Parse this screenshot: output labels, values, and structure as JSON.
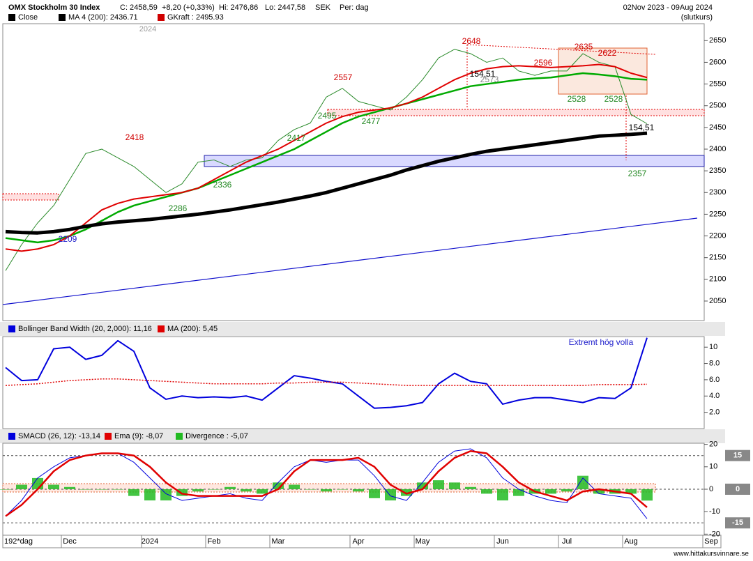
{
  "header": {
    "title": "OMX Stockholm 30 Index",
    "close": "C: 2458,59",
    "change": "+8,20 (+0,33%)",
    "high": "Hi: 2476,86",
    "low": "Lo: 2447,58",
    "currency": "SEK",
    "period": "Per: dag",
    "range": "02Nov 2023 - 09Aug 2024",
    "mode": "(slutkurs)",
    "year_marker": "2024",
    "period_label": "192*dag",
    "watermark": "www.hittakursvinnare.se"
  },
  "chart_data": [
    {
      "type": "line",
      "legend": [
        {
          "name": "Close",
          "color": "#000000"
        },
        {
          "name": "MA 4 (200): 2436.71",
          "color": "#000000"
        },
        {
          "name": "GKraft : 2495.93",
          "color": "#d00000"
        }
      ],
      "ylim": [
        2005,
        2689
      ],
      "yticks": [
        2050,
        2100,
        2150,
        2200,
        2250,
        2300,
        2350,
        2400,
        2450,
        2500,
        2550,
        2600,
        2650
      ],
      "annotations": [
        "2418",
        "2557",
        "2648",
        "2635",
        "2622",
        "2596",
        "2209",
        "2286",
        "2336",
        "2417",
        "2477",
        "2495",
        "2528",
        "2528",
        "2357",
        "154,51",
        "154,51",
        "2573"
      ],
      "series": [
        {
          "color": "#2a8a2a",
          "values": [
            2120,
            2180,
            2230,
            2270,
            2330,
            2390,
            2400,
            2380,
            2360,
            2330,
            2300,
            2320,
            2370,
            2375,
            2360,
            2375,
            2380,
            2420,
            2445,
            2460,
            2520,
            2540,
            2510,
            2500,
            2490,
            2520,
            2560,
            2610,
            2630,
            2620,
            2600,
            2610,
            2580,
            2570,
            2580,
            2580,
            2620,
            2600,
            2590,
            2480,
            2458.59,
            null,
            null,
            null,
            null
          ]
        },
        {
          "color": "#00aa00",
          "values": [
            2195,
            2190,
            2185,
            2190,
            2200,
            2215,
            2235,
            2255,
            2270,
            2280,
            2290,
            2300,
            2310,
            2325,
            2340,
            2355,
            2370,
            2385,
            2400,
            2420,
            2440,
            2460,
            2475,
            2485,
            2495,
            2505,
            2515,
            2525,
            2535,
            2545,
            2550,
            2555,
            2560,
            2563,
            2565,
            2570,
            2575,
            2572,
            2568,
            2562,
            2560,
            null,
            null,
            null,
            null
          ]
        },
        {
          "color": "#e00000",
          "values": [
            2170,
            2165,
            2170,
            2180,
            2200,
            2230,
            2260,
            2275,
            2285,
            2290,
            2295,
            2300,
            2310,
            2330,
            2350,
            2370,
            2385,
            2400,
            2420,
            2440,
            2460,
            2475,
            2485,
            2490,
            2495,
            2505,
            2520,
            2540,
            2560,
            2575,
            2585,
            2590,
            2592,
            2590,
            2588,
            2590,
            2592,
            2595,
            2590,
            2575,
            2565,
            null,
            null,
            null,
            null
          ]
        },
        {
          "color": "#000000",
          "values": [
            2210,
            2208,
            2207,
            2210,
            2215,
            2222,
            2228,
            2232,
            2235,
            2238,
            2242,
            2246,
            2250,
            2255,
            2260,
            2266,
            2272,
            2278,
            2285,
            2292,
            2300,
            2310,
            2320,
            2330,
            2340,
            2352,
            2362,
            2372,
            2380,
            2388,
            2395,
            2400,
            2405,
            2410,
            2415,
            2420,
            2425,
            2430,
            2432,
            2434,
            2436.71,
            null,
            null,
            null,
            null
          ]
        }
      ]
    },
    {
      "type": "line",
      "legend": [
        {
          "name": "Bollinger Band Width (20, 2,000): 11,16",
          "color": "#0000dd"
        },
        {
          "name": "MA (200): 5,45",
          "color": "#e00000"
        }
      ],
      "ylim": [
        0,
        11.3
      ],
      "yticks": [
        10,
        {
          "value": 8,
          "label": "8.0"
        },
        {
          "value": 6,
          "label": "6.0"
        },
        {
          "value": 4,
          "label": "4.0"
        },
        {
          "value": 2,
          "label": "2.0"
        }
      ],
      "annotations": [
        "Extremt hög volla"
      ],
      "series": [
        {
          "color": "#0000dd",
          "values": [
            7.5,
            5.9,
            6.0,
            9.8,
            10.0,
            8.5,
            9.0,
            10.8,
            9.5,
            5.0,
            3.6,
            4.0,
            3.8,
            3.9,
            3.8,
            4.0,
            3.5,
            5.0,
            6.5,
            6.2,
            5.8,
            5.5,
            4.0,
            2.5,
            2.6,
            2.8,
            3.2,
            5.5,
            6.8,
            5.8,
            5.5,
            3.0,
            3.5,
            3.8,
            3.8,
            3.5,
            3.2,
            3.8,
            3.7,
            5.0,
            11.16,
            null,
            null,
            null,
            null
          ]
        },
        {
          "color": "#e00000",
          "dash": true,
          "values": [
            5.3,
            5.4,
            5.5,
            5.7,
            5.9,
            6.0,
            6.1,
            6.1,
            6.0,
            5.9,
            5.8,
            5.7,
            5.6,
            5.5,
            5.5,
            5.5,
            5.5,
            5.6,
            5.6,
            5.7,
            5.7,
            5.7,
            5.6,
            5.5,
            5.4,
            5.3,
            5.3,
            5.3,
            5.3,
            5.3,
            5.3,
            5.3,
            5.3,
            5.3,
            5.3,
            5.3,
            5.3,
            5.4,
            5.4,
            5.4,
            5.45,
            null,
            null,
            null,
            null
          ]
        }
      ]
    },
    {
      "type": "line",
      "legend": [
        {
          "name": "SMACD (26, 12): -13,14",
          "color": "#0000dd"
        },
        {
          "name": "Ema (9): -8,07",
          "color": "#e00000"
        },
        {
          "name": "Divergence : -5,07",
          "color": "#22bb22"
        }
      ],
      "ylim": [
        -20.5,
        20.5
      ],
      "yticks": [
        20,
        10,
        0,
        -10,
        -20
      ],
      "reference_lines": [
        15,
        0,
        -15
      ],
      "categories": [
        null,
        null,
        null,
        null,
        "Dec",
        null,
        null,
        null,
        null,
        "2024",
        null,
        null,
        null,
        "Feb",
        null,
        null,
        null,
        "Mar",
        null,
        null,
        null,
        null,
        "Apr",
        null,
        null,
        null,
        "May",
        null,
        null,
        null,
        null,
        "Jun",
        null,
        null,
        null,
        "Jul",
        null,
        null,
        null,
        "Aug",
        null,
        null,
        null,
        null,
        "Sep"
      ],
      "series": [
        {
          "color": "#22bb22",
          "kind": "bar",
          "values": [
            0,
            2,
            5,
            2,
            1,
            0,
            0,
            0,
            -3,
            -5,
            -5,
            -3,
            -1,
            0,
            1,
            -1,
            -2,
            3,
            2,
            0,
            -1,
            0,
            -1,
            -4,
            -5,
            -3,
            3,
            4,
            3,
            1,
            -2,
            -5,
            -3,
            -2,
            -2,
            -1,
            6,
            -2,
            -2,
            -2,
            -5.07,
            null,
            null,
            null,
            null
          ]
        },
        {
          "color": "#0000dd",
          "values": [
            -12,
            -5,
            5,
            10,
            14,
            15,
            16,
            16,
            12,
            5,
            -2,
            -5,
            -4,
            -3,
            -2,
            -4,
            -5,
            3,
            10,
            13,
            12,
            13,
            13,
            6,
            -3,
            -5,
            3,
            12,
            17,
            18,
            14,
            5,
            0,
            -3,
            -5,
            -6,
            5,
            -2,
            -3,
            -4,
            -13.14,
            null,
            null,
            null,
            null
          ]
        },
        {
          "color": "#e00000",
          "values": [
            -12,
            -7,
            0,
            8,
            13,
            15,
            16,
            16,
            15,
            10,
            3,
            -2,
            -3,
            -3,
            -3,
            -3,
            -3,
            0,
            8,
            13,
            13,
            13,
            14,
            10,
            2,
            -2,
            0,
            8,
            14,
            17,
            16,
            10,
            3,
            -1,
            -3,
            -5,
            -1,
            0,
            -1,
            -2,
            -8.07,
            null,
            null,
            null,
            null
          ]
        }
      ]
    }
  ]
}
